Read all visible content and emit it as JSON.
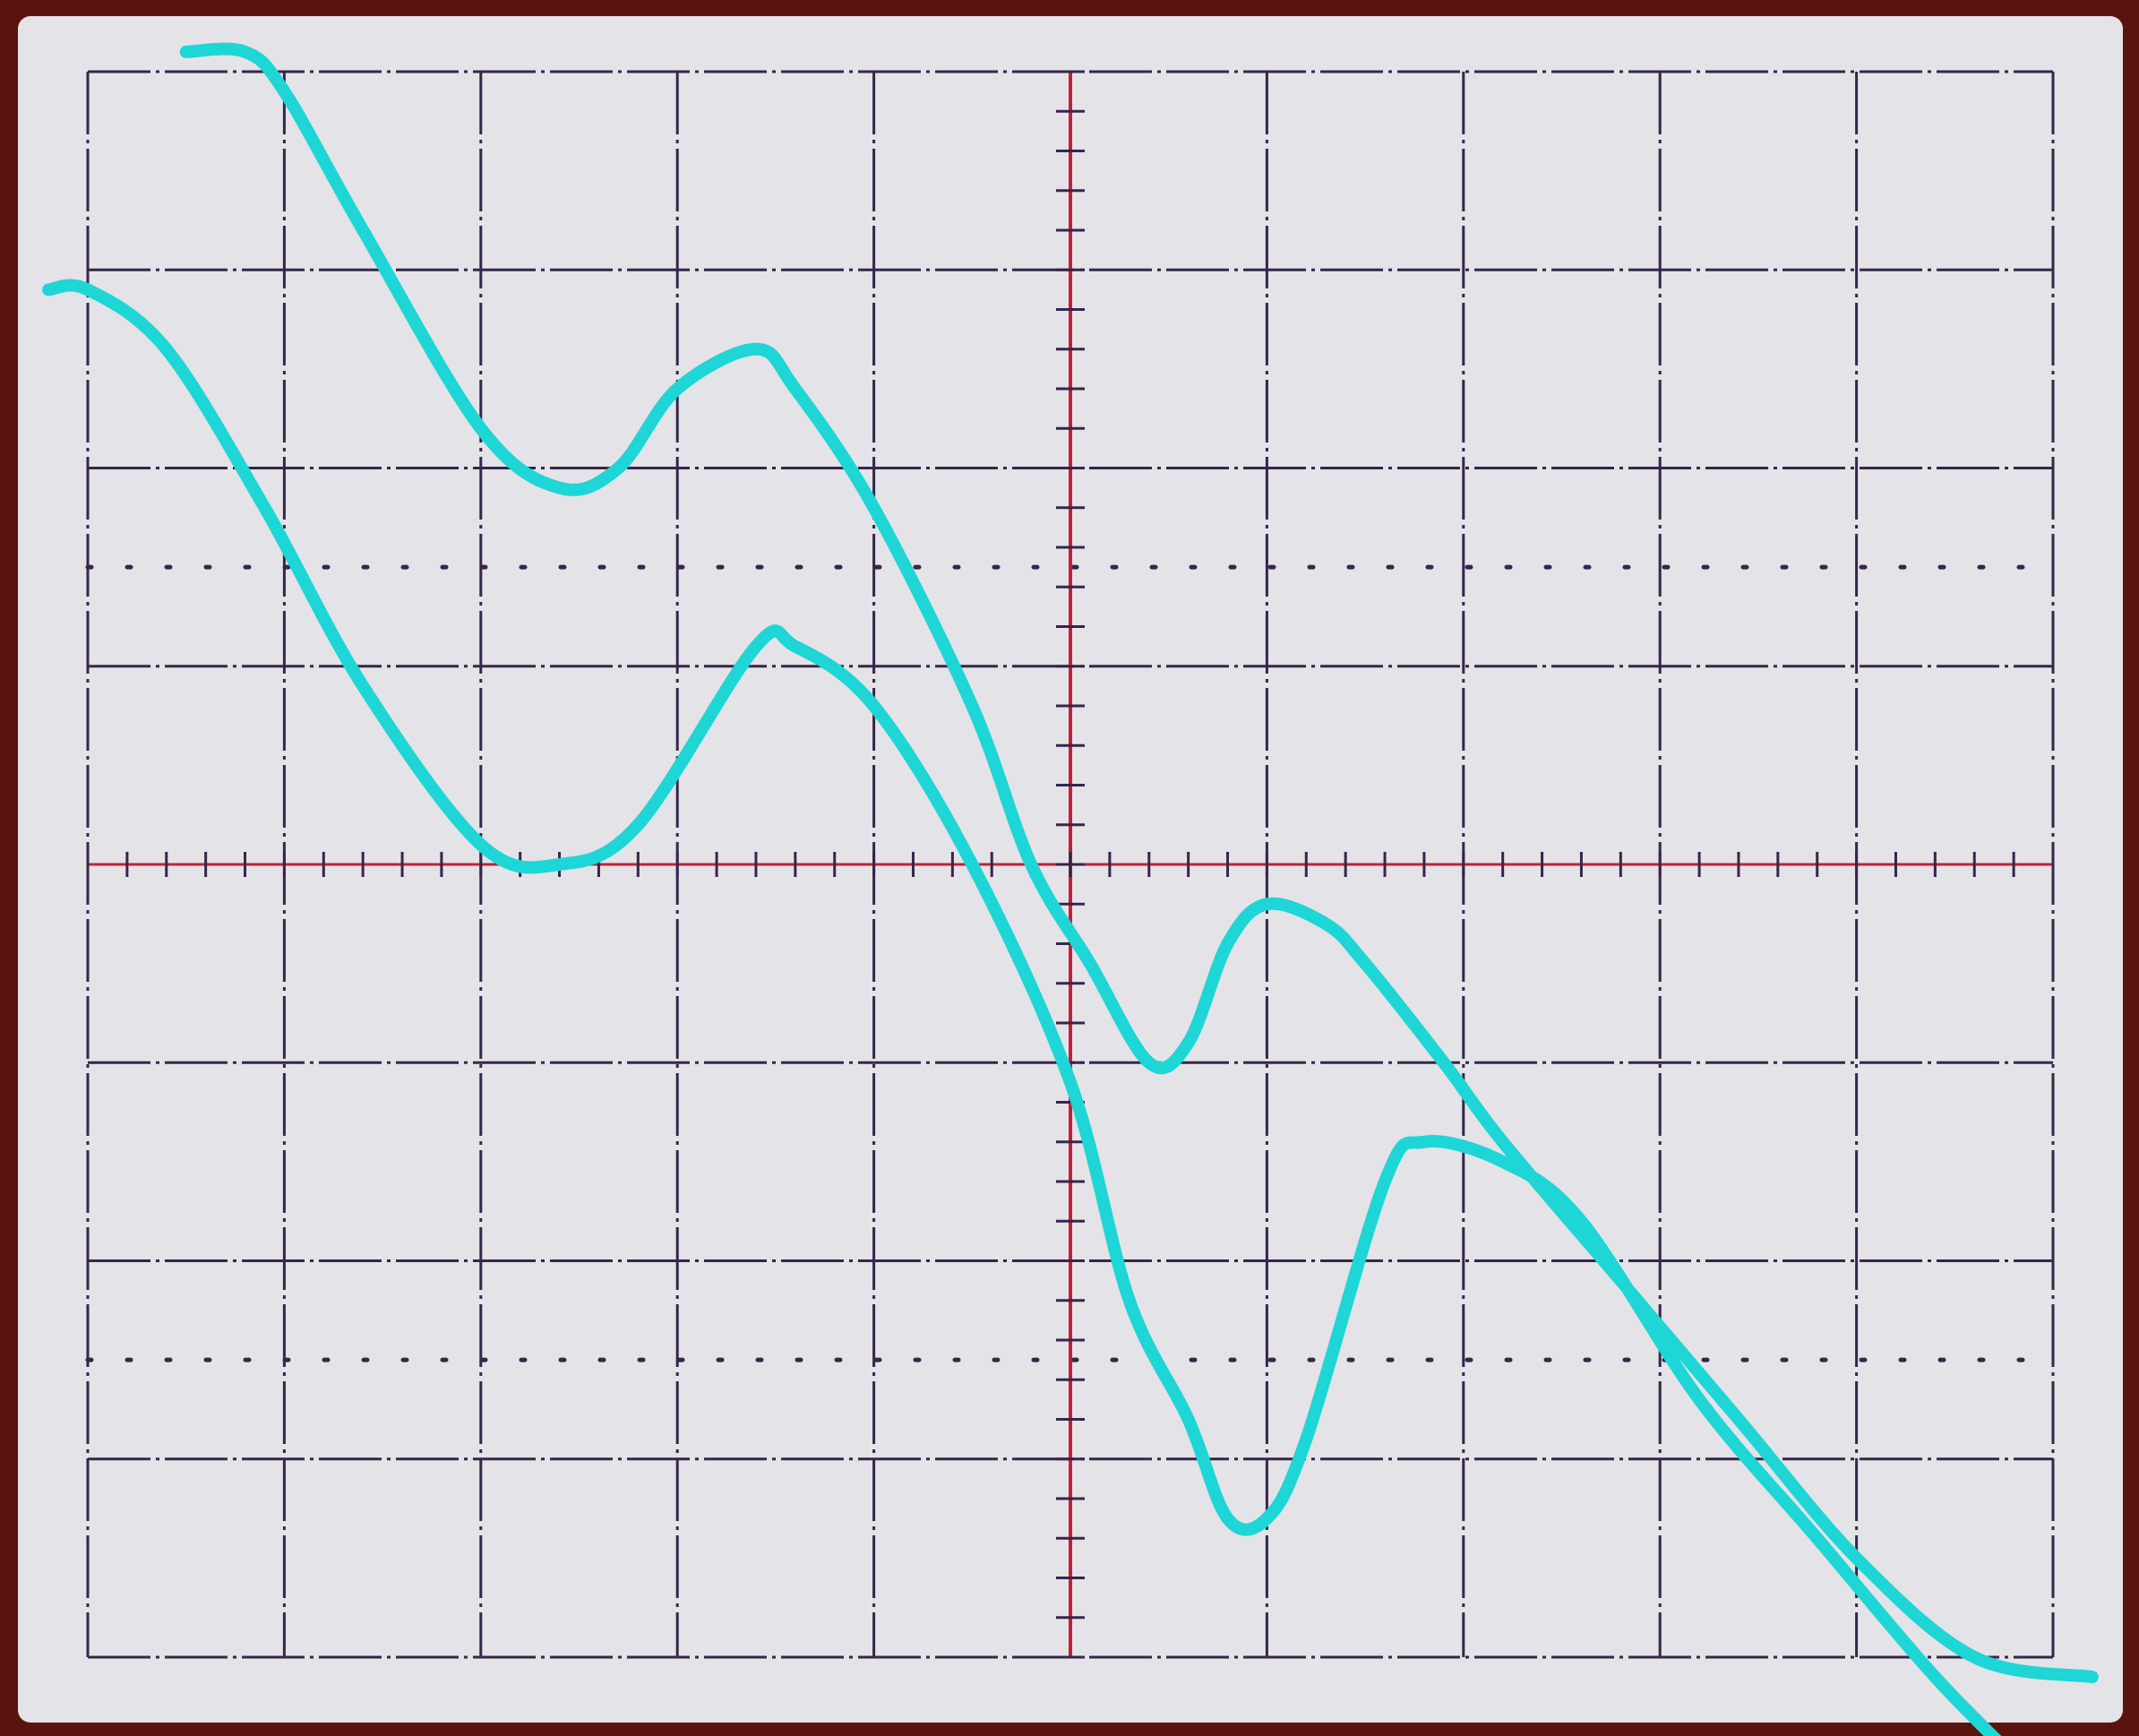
{
  "chart_data": {
    "type": "line",
    "title": "",
    "xlabel": "",
    "ylabel": "",
    "xlim": [
      -5,
      5
    ],
    "ylim": [
      -4,
      4
    ],
    "grid": true,
    "divisions": {
      "x": 10,
      "y": 8,
      "minor_per_division": 5
    },
    "series": [
      {
        "x": [
          -4.5,
          -4.2,
          -4.0,
          -3.6,
          -3.0,
          -2.6,
          -2.3,
          -2.0,
          -1.6,
          -1.4,
          -1.0,
          -0.5,
          -0.2,
          0.1,
          0.4,
          0.6,
          0.8,
          1.0,
          1.3,
          1.5,
          1.9,
          2.2,
          2.8,
          3.4,
          4.0,
          4.6,
          5.2
        ],
        "values": [
          4.1,
          4.1,
          3.9,
          3.2,
          2.2,
          1.9,
          2.0,
          2.4,
          2.6,
          2.4,
          1.8,
          0.8,
          0.0,
          -0.5,
          -1.0,
          -0.9,
          -0.4,
          -0.2,
          -0.3,
          -0.5,
          -1.0,
          -1.4,
          -2.1,
          -2.8,
          -3.5,
          -4.0,
          -4.1
        ]
      },
      {
        "x": [
          -5.2,
          -5.0,
          -4.6,
          -4.1,
          -3.6,
          -3.0,
          -2.6,
          -2.2,
          -1.6,
          -1.4,
          -1.0,
          -0.5,
          0.0,
          0.3,
          0.6,
          0.8,
          1.0,
          1.2,
          1.6,
          1.8,
          2.2,
          2.6,
          3.2,
          3.8,
          4.4,
          4.9
        ],
        "values": [
          2.9,
          2.9,
          2.6,
          1.8,
          0.9,
          0.1,
          0.0,
          0.2,
          1.1,
          1.1,
          0.8,
          0.0,
          -1.1,
          -2.2,
          -2.8,
          -3.3,
          -3.3,
          -2.9,
          -1.6,
          -1.4,
          -1.5,
          -1.8,
          -2.7,
          -3.4,
          -4.1,
          -4.6
        ]
      }
    ],
    "colors": {
      "trace": "#1ed6d6",
      "graticule": "#36264a",
      "axis_tick": "#c2203a",
      "screen": "#e4e3e7",
      "bezel": "#5a1410"
    }
  }
}
